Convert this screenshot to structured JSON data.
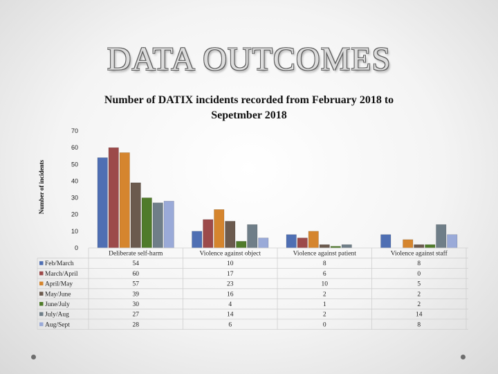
{
  "slide": {
    "title": "DATA OUTCOMES"
  },
  "chart_data": {
    "type": "bar",
    "title": "Number of DATIX incidents recorded from February 2018 to Sepetmber 2018",
    "title_lines": [
      "Number of DATIX incidents recorded from February 2018 to",
      "Sepetmber 2018"
    ],
    "xlabel": "",
    "ylabel": "Number of incidents",
    "ylim": [
      0,
      70
    ],
    "yticks": [
      "0",
      "10",
      "20",
      "30",
      "40",
      "50",
      "60",
      "70"
    ],
    "grid": false,
    "legend": "left, as data table rows",
    "categories": [
      "Deliberate self-harm",
      "Violence against object",
      "Violence against patient",
      "Violence against staff"
    ],
    "series": [
      {
        "name": "Feb/March",
        "color": "#4f6fb3",
        "values": [
          54,
          10,
          8,
          8
        ]
      },
      {
        "name": "March/April",
        "color": "#9c4a4a",
        "values": [
          60,
          17,
          6,
          0
        ]
      },
      {
        "name": "April/May",
        "color": "#d5852e",
        "values": [
          57,
          23,
          10,
          5
        ]
      },
      {
        "name": "May/June",
        "color": "#6b5a4e",
        "values": [
          39,
          16,
          2,
          2
        ]
      },
      {
        "name": "June/July",
        "color": "#4f7b2a",
        "values": [
          30,
          4,
          1,
          2
        ]
      },
      {
        "name": "July/Aug",
        "color": "#6f7e88",
        "values": [
          27,
          14,
          2,
          14
        ]
      },
      {
        "name": "Aug/Sept",
        "color": "#9aaad8",
        "values": [
          28,
          6,
          0,
          8
        ]
      }
    ]
  }
}
